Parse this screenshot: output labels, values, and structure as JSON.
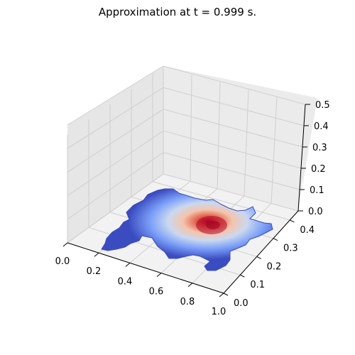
{
  "chart_data": {
    "type": "surface",
    "title": "Approximation at t = 0.999 s.",
    "xlabel": "",
    "ylabel": "",
    "zlabel": "",
    "x_ticks": [
      "0.0",
      "0.2",
      "0.4",
      "0.6",
      "0.8",
      "1.0"
    ],
    "y_ticks": [
      "0.0",
      "0.1",
      "0.2",
      "0.3",
      "0.4"
    ],
    "z_ticks": [
      "0.0",
      "0.1",
      "0.2",
      "0.3",
      "0.4",
      "0.5"
    ],
    "xlim": [
      0,
      1
    ],
    "ylim": [
      0,
      0.45
    ],
    "zlim": [
      0,
      0.5
    ],
    "grid": true,
    "colormap": "coolwarm",
    "colors": {
      "low": "#3b4cc0",
      "mid": "#dddddd",
      "high": "#b40426",
      "pane": "#f2f2f2",
      "grid": "#d0d0d0"
    },
    "peak": {
      "x": 0.62,
      "y": 0.27,
      "z": 0.03
    },
    "domain_shape": "irregular blob"
  }
}
